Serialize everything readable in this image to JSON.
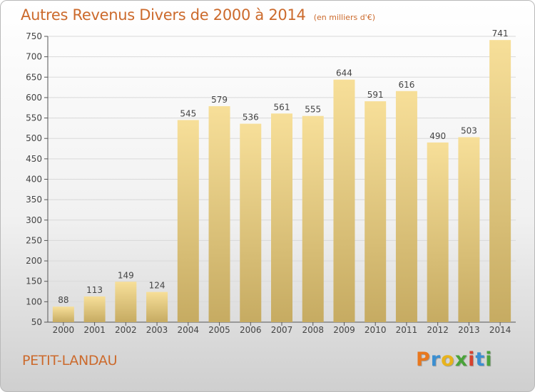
{
  "chart_data": {
    "type": "bar",
    "title": "Autres Revenus Divers de 2000 à 2014",
    "subtitle": "(en milliers d'€)",
    "categories": [
      "2000",
      "2001",
      "2002",
      "2003",
      "2004",
      "2005",
      "2006",
      "2007",
      "2008",
      "2009",
      "2010",
      "2011",
      "2012",
      "2013",
      "2014"
    ],
    "values": [
      88,
      113,
      149,
      124,
      545,
      579,
      536,
      561,
      555,
      644,
      591,
      616,
      490,
      503,
      741
    ],
    "ylim": [
      50,
      750
    ],
    "yticks": [
      50,
      100,
      150,
      200,
      250,
      300,
      350,
      400,
      450,
      500,
      550,
      600,
      650,
      700,
      750
    ],
    "grid": true,
    "legend": "none",
    "bar_color_top": "#f7df99",
    "bar_color_bottom": "#c6ab62"
  },
  "location": "PETIT-LANDAU",
  "logo": {
    "letters": [
      "P",
      "r",
      "o",
      "x",
      "i",
      "t",
      "i"
    ],
    "colors": [
      "#e8781f",
      "#3b8fd1",
      "#e8b31c",
      "#4aa33a",
      "#d6432f",
      "#3b8fd1",
      "#4aa33a"
    ]
  },
  "colors": {
    "title": "#cc6a2c",
    "grid": "#d9d9d9",
    "axis": "#555555"
  }
}
